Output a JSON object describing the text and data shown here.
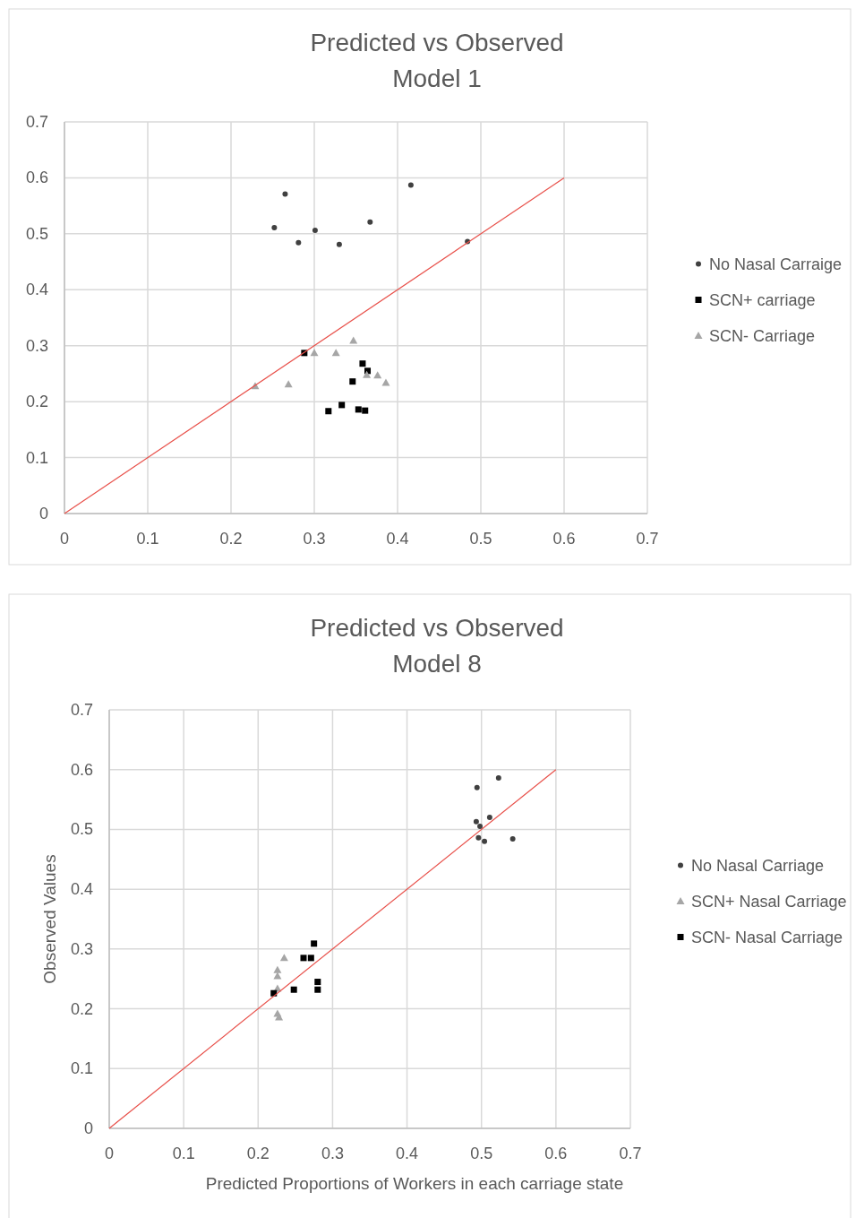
{
  "chart_data": [
    {
      "type": "scatter",
      "title": "Predicted vs Observed\nModel 1",
      "xlim": [
        0,
        0.7
      ],
      "ylim": [
        0,
        0.7
      ],
      "xticks": [
        0,
        0.1,
        0.2,
        0.3,
        0.4,
        0.5,
        0.6,
        0.7
      ],
      "yticks": [
        0,
        0.1,
        0.2,
        0.3,
        0.4,
        0.5,
        0.6,
        0.7
      ],
      "grid": true,
      "legend": "right",
      "series": [
        {
          "name": "No Nasal Carraige",
          "color": "#404040",
          "marker": "circle",
          "x": [
            0.252,
            0.265,
            0.281,
            0.301,
            0.33,
            0.367,
            0.416,
            0.484
          ],
          "values": [
            0.511,
            0.571,
            0.484,
            0.506,
            0.481,
            0.521,
            0.587,
            0.486
          ]
        },
        {
          "name": "SCN+ carriage",
          "color": "#000000",
          "marker": "square",
          "x": [
            0.288,
            0.358,
            0.364,
            0.346,
            0.317,
            0.333,
            0.353,
            0.361
          ],
          "values": [
            0.287,
            0.268,
            0.255,
            0.236,
            0.183,
            0.194,
            0.186,
            0.184
          ]
        },
        {
          "name": "SCN- Carriage",
          "color": "#a6a6a6",
          "marker": "triangle",
          "x": [
            0.229,
            0.269,
            0.3,
            0.326,
            0.347,
            0.363,
            0.376,
            0.386
          ],
          "values": [
            0.228,
            0.231,
            0.287,
            0.287,
            0.309,
            0.248,
            0.247,
            0.234
          ]
        },
        {
          "type": "line",
          "color": "#e8504a",
          "marker": "none",
          "x": [
            0,
            0.6
          ],
          "values": [
            0,
            0.6
          ]
        }
      ]
    },
    {
      "type": "scatter",
      "title": "Predicted vs Observed\nModel 8",
      "xlabel": "Predicted Proportions of Workers in each carriage state",
      "ylabel": "Observed Values",
      "xlim": [
        0,
        0.7
      ],
      "ylim": [
        0,
        0.7
      ],
      "xticks": [
        0,
        0.1,
        0.2,
        0.3,
        0.4,
        0.5,
        0.6,
        0.7
      ],
      "yticks": [
        0,
        0.1,
        0.2,
        0.3,
        0.4,
        0.5,
        0.6,
        0.7
      ],
      "grid": true,
      "legend": "right",
      "series": [
        {
          "name": "No Nasal Carriage",
          "color": "#404040",
          "marker": "circle",
          "x": [
            0.494,
            0.523,
            0.493,
            0.498,
            0.511,
            0.496,
            0.504,
            0.542
          ],
          "values": [
            0.57,
            0.586,
            0.513,
            0.505,
            0.52,
            0.486,
            0.48,
            0.484
          ]
        },
        {
          "name": "SCN+ Nasal Carriage",
          "color": "#a6a6a6",
          "marker": "triangle",
          "x": [
            0.235,
            0.226,
            0.226,
            0.226,
            0.226,
            0.228
          ],
          "values": [
            0.285,
            0.265,
            0.255,
            0.234,
            0.192,
            0.186
          ]
        },
        {
          "name": "SCN- Nasal Carriage",
          "color": "#000000",
          "marker": "square",
          "x": [
            0.275,
            0.261,
            0.271,
            0.28,
            0.28,
            0.248,
            0.221
          ],
          "values": [
            0.309,
            0.285,
            0.285,
            0.245,
            0.232,
            0.232,
            0.226
          ]
        },
        {
          "type": "line",
          "color": "#e8504a",
          "marker": "none",
          "x": [
            0,
            0.6
          ],
          "values": [
            0,
            0.6
          ]
        }
      ]
    }
  ]
}
